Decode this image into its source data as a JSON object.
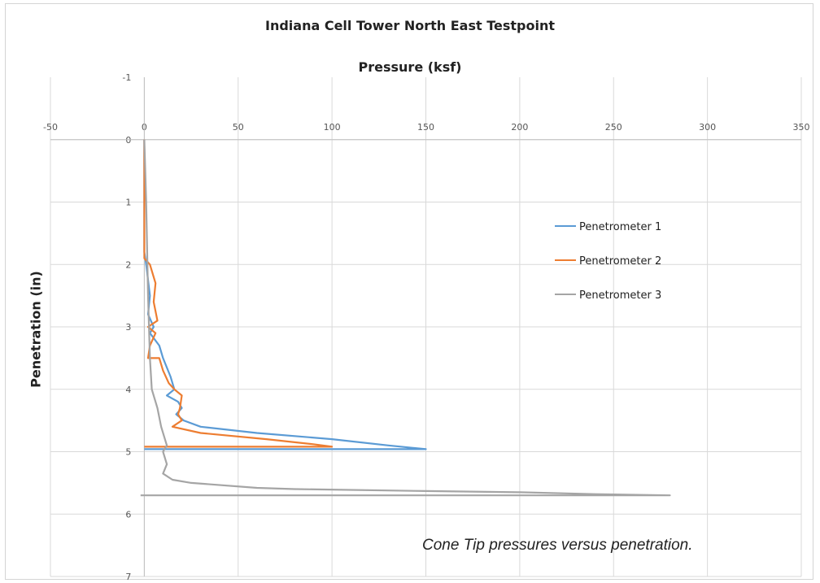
{
  "chart_data": {
    "type": "line",
    "title": "Indiana Cell Tower North East Testpoint",
    "xlabel": "Pressure (ksf)",
    "ylabel": "Penetration (in)",
    "xlim": [
      -50,
      350
    ],
    "ylim": [
      -1,
      7
    ],
    "x_ticks": [
      -50,
      0,
      50,
      100,
      150,
      200,
      250,
      300,
      350
    ],
    "y_ticks": [
      -1,
      0,
      1,
      2,
      3,
      4,
      5,
      6,
      7
    ],
    "x_axis_position": "top",
    "y_inverted": true,
    "grid": true,
    "legend_position": "right",
    "series": [
      {
        "name": "Penetrometer 1",
        "color": "#5b9bd5",
        "points": [
          [
            0,
            0
          ],
          [
            0,
            1
          ],
          [
            0,
            1.8
          ],
          [
            1,
            2
          ],
          [
            3,
            2.5
          ],
          [
            2,
            2.8
          ],
          [
            5,
            3.0
          ],
          [
            3,
            3.1
          ],
          [
            8,
            3.3
          ],
          [
            10,
            3.5
          ],
          [
            14,
            3.8
          ],
          [
            16,
            4.0
          ],
          [
            12,
            4.1
          ],
          [
            18,
            4.2
          ],
          [
            20,
            4.3
          ],
          [
            17,
            4.4
          ],
          [
            21,
            4.5
          ],
          [
            30,
            4.6
          ],
          [
            60,
            4.7
          ],
          [
            100,
            4.8
          ],
          [
            130,
            4.9
          ],
          [
            150,
            4.96
          ],
          [
            0,
            4.96
          ]
        ]
      },
      {
        "name": "Penetrometer 2",
        "color": "#ed7d31",
        "points": [
          [
            0,
            0
          ],
          [
            0,
            1
          ],
          [
            0,
            1.9
          ],
          [
            3,
            2.0
          ],
          [
            6,
            2.3
          ],
          [
            5,
            2.6
          ],
          [
            7,
            2.9
          ],
          [
            2,
            3.0
          ],
          [
            6,
            3.1
          ],
          [
            3,
            3.3
          ],
          [
            2,
            3.5
          ],
          [
            8,
            3.5
          ],
          [
            10,
            3.7
          ],
          [
            13,
            3.9
          ],
          [
            16,
            4.0
          ],
          [
            20,
            4.1
          ],
          [
            19,
            4.3
          ],
          [
            18,
            4.4
          ],
          [
            20,
            4.5
          ],
          [
            15,
            4.6
          ],
          [
            30,
            4.7
          ],
          [
            65,
            4.8
          ],
          [
            90,
            4.88
          ],
          [
            100,
            4.92
          ],
          [
            0,
            4.92
          ]
        ]
      },
      {
        "name": "Penetrometer 3",
        "color": "#a5a5a5",
        "points": [
          [
            0,
            0
          ],
          [
            1,
            1
          ],
          [
            2,
            2.5
          ],
          [
            3,
            3.5
          ],
          [
            4,
            4.0
          ],
          [
            7,
            4.3
          ],
          [
            9,
            4.6
          ],
          [
            12,
            4.9
          ],
          [
            10,
            5.0
          ],
          [
            12,
            5.2
          ],
          [
            10,
            5.35
          ],
          [
            15,
            5.45
          ],
          [
            25,
            5.5
          ],
          [
            60,
            5.58
          ],
          [
            80,
            5.6
          ],
          [
            150,
            5.63
          ],
          [
            200,
            5.65
          ],
          [
            240,
            5.68
          ],
          [
            280,
            5.7
          ],
          [
            -2,
            5.7
          ]
        ]
      }
    ]
  },
  "caption": "Cone Tip pressures versus penetration."
}
